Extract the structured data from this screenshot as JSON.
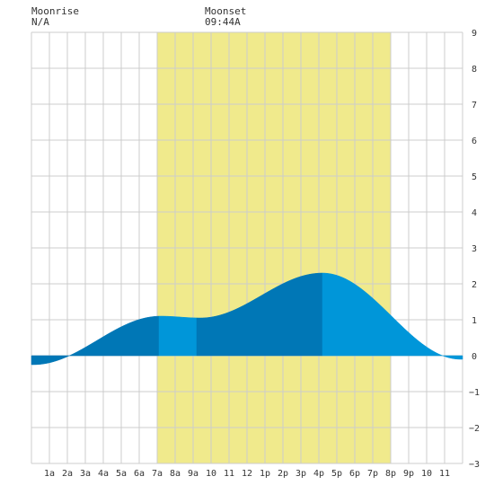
{
  "header": {
    "moonrise_label": "Moonrise",
    "moonrise_value": "N/A",
    "moonset_label": "Moonset",
    "moonset_value": "09:44A"
  },
  "chart_data": {
    "type": "area",
    "title": "",
    "xlabel": "",
    "ylabel": "",
    "xlim": [
      0,
      24
    ],
    "ylim": [
      -3,
      9
    ],
    "x_ticks": [
      {
        "x": 1,
        "label": "1a"
      },
      {
        "x": 2,
        "label": "2a"
      },
      {
        "x": 3,
        "label": "3a"
      },
      {
        "x": 4,
        "label": "4a"
      },
      {
        "x": 5,
        "label": "5a"
      },
      {
        "x": 6,
        "label": "6a"
      },
      {
        "x": 7,
        "label": "7a"
      },
      {
        "x": 8,
        "label": "8a"
      },
      {
        "x": 9,
        "label": "9a"
      },
      {
        "x": 10,
        "label": "10"
      },
      {
        "x": 11,
        "label": "11"
      },
      {
        "x": 12,
        "label": "12"
      },
      {
        "x": 13,
        "label": "1p"
      },
      {
        "x": 14,
        "label": "2p"
      },
      {
        "x": 15,
        "label": "3p"
      },
      {
        "x": 16,
        "label": "4p"
      },
      {
        "x": 17,
        "label": "5p"
      },
      {
        "x": 18,
        "label": "6p"
      },
      {
        "x": 19,
        "label": "7p"
      },
      {
        "x": 20,
        "label": "8p"
      },
      {
        "x": 21,
        "label": "9p"
      },
      {
        "x": 22,
        "label": "10"
      },
      {
        "x": 23,
        "label": "11"
      }
    ],
    "y_ticks": [
      -3,
      -2,
      -1,
      0,
      1,
      2,
      3,
      4,
      5,
      6,
      7,
      8,
      9
    ],
    "grid": true,
    "daylight": {
      "start": 7.0,
      "end": 20.0,
      "color": "#f0ea8c"
    },
    "tide_extremes": [
      {
        "time": 0.1,
        "height": -0.25,
        "type": "low"
      },
      {
        "time": 7.2,
        "height": 1.1,
        "type": "high"
      },
      {
        "time": 9.4,
        "height": 1.05,
        "type": "low"
      },
      {
        "time": 16.2,
        "height": 2.3,
        "type": "high"
      },
      {
        "time": 23.9,
        "height": -0.1,
        "type": "low"
      }
    ],
    "fill_segments": [
      {
        "start": 0.0,
        "end": 7.1,
        "color": "#0077b6"
      },
      {
        "start": 7.1,
        "end": 9.2,
        "color": "#0096d9"
      },
      {
        "start": 9.2,
        "end": 16.2,
        "color": "#0077b6"
      },
      {
        "start": 16.2,
        "end": 24.0,
        "color": "#0096d9"
      }
    ],
    "colors": {
      "grid": "#cccccc",
      "axis_text": "#333333",
      "background": "#ffffff"
    }
  }
}
